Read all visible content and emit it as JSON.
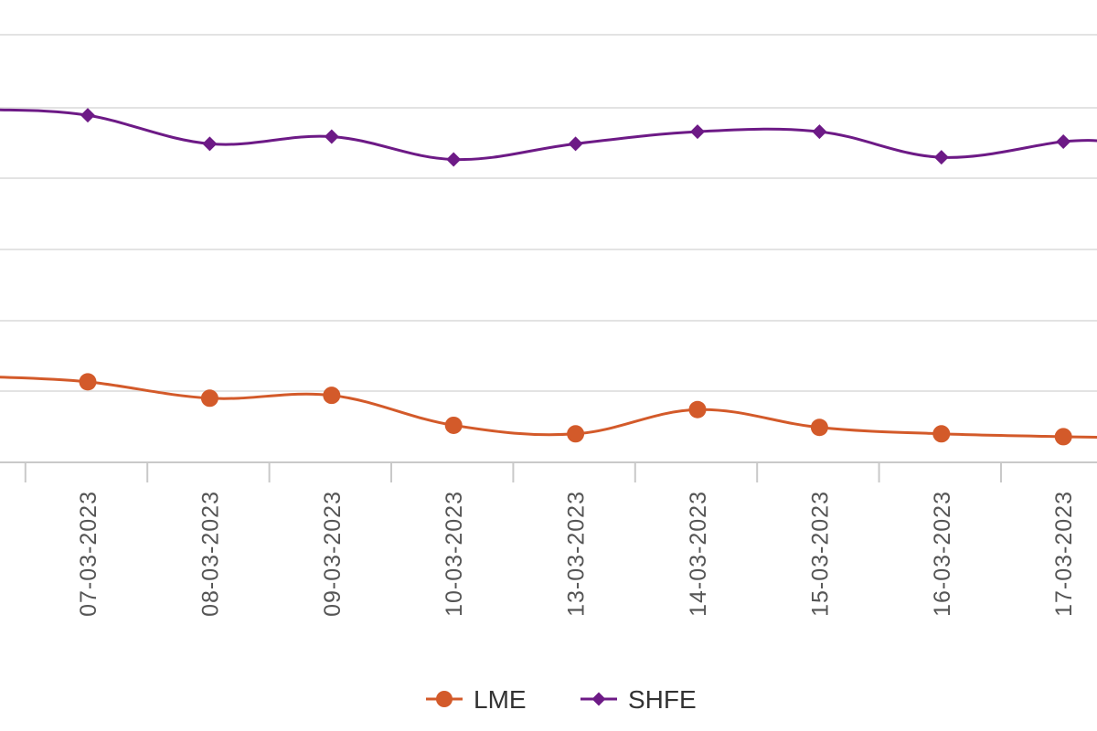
{
  "chart_data": {
    "type": "line",
    "x": [
      "07-03-2023",
      "08-03-2023",
      "09-03-2023",
      "10-03-2023",
      "13-03-2023",
      "14-03-2023",
      "15-03-2023",
      "16-03-2023",
      "17-03-2023"
    ],
    "ylim": [
      0,
      6
    ],
    "grid": true,
    "legend_position": "bottom",
    "y_lead_in": {
      "LME": 1.2,
      "SHFE": 4.95
    },
    "y_lead_out": {
      "LME": 0.35,
      "SHFE": 4.5
    },
    "series": [
      {
        "name": "LME",
        "color": "#d35a2a",
        "marker": "circle",
        "values": [
          1.13,
          0.9,
          0.94,
          0.52,
          0.4,
          0.74,
          0.49,
          0.4,
          0.36
        ]
      },
      {
        "name": "SHFE",
        "color": "#6d1a86",
        "marker": "diamond",
        "values": [
          4.87,
          4.47,
          4.57,
          4.25,
          4.47,
          4.64,
          4.64,
          4.28,
          4.5
        ]
      }
    ]
  }
}
